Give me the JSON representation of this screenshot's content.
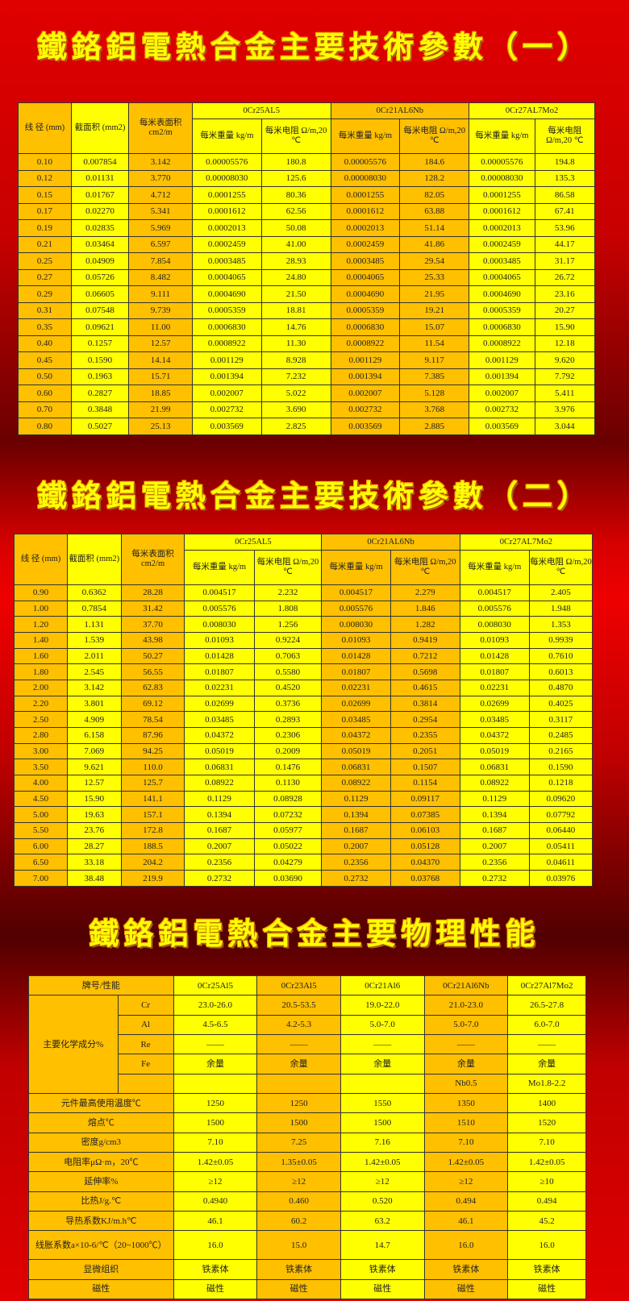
{
  "titles": [
    "鐵鉻鋁電熱合金主要技術參數（一）",
    "鐵鉻鋁電熱合金主要技術參數（二）",
    "鐵鉻鋁電熱合金主要物理性能"
  ],
  "param_header": {
    "diameter": "线 径 (mm)",
    "area": "截面积 (mm2)",
    "surface": "每米表面积 cm2/m",
    "alloys": [
      "0Cr25AL5",
      "0Cr21AL6Nb",
      "0Cr27AL7Mo2"
    ],
    "weight": "每米重量 kg/m",
    "resistance": "每米电阻 Ω/m,20 ℃"
  },
  "table1_rows": [
    [
      "0.10",
      "0.007854",
      "3.142",
      "0.00005576",
      "180.8",
      "0.00005576",
      "184.6",
      "0.00005576",
      "194.8"
    ],
    [
      "0.12",
      "0.01131",
      "3.770",
      "0.00008030",
      "125.6",
      "0.00008030",
      "128.2",
      "0.00008030",
      "135.3"
    ],
    [
      "0.15",
      "0.01767",
      "4.712",
      "0.0001255",
      "80.36",
      "0.0001255",
      "82.05",
      "0.0001255",
      "86.58"
    ],
    [
      "0.17",
      "0.02270",
      "5.341",
      "0.0001612",
      "62.56",
      "0.0001612",
      "63.88",
      "0.0001612",
      "67.41"
    ],
    [
      "0.19",
      "0.02835",
      "5.969",
      "0.0002013",
      "50.08",
      "0.0002013",
      "51.14",
      "0.0002013",
      "53.96"
    ],
    [
      "0.21",
      "0.03464",
      "6.597",
      "0.0002459",
      "41.00",
      "0.0002459",
      "41.86",
      "0.0002459",
      "44.17"
    ],
    [
      "0.25",
      "0.04909",
      "7.854",
      "0.0003485",
      "28.93",
      "0.0003485",
      "29.54",
      "0.0003485",
      "31.17"
    ],
    [
      "0.27",
      "0.05726",
      "8.482",
      "0.0004065",
      "24.80",
      "0.0004065",
      "25.33",
      "0.0004065",
      "26.72"
    ],
    [
      "0.29",
      "0.06605",
      "9.111",
      "0.0004690",
      "21.50",
      "0.0004690",
      "21.95",
      "0.0004690",
      "23.16"
    ],
    [
      "0.31",
      "0.07548",
      "9.739",
      "0.0005359",
      "18.81",
      "0.0005359",
      "19.21",
      "0.0005359",
      "20.27"
    ],
    [
      "0.35",
      "0.09621",
      "11.00",
      "0.0006830",
      "14.76",
      "0.0006830",
      "15.07",
      "0.0006830",
      "15.90"
    ],
    [
      "0.40",
      "0.1257",
      "12.57",
      "0.0008922",
      "11.30",
      "0.0008922",
      "11.54",
      "0.0008922",
      "12.18"
    ],
    [
      "0.45",
      "0.1590",
      "14.14",
      "0.001129",
      "8.928",
      "0.001129",
      "9.117",
      "0.001129",
      "9.620"
    ],
    [
      "0.50",
      "0.1963",
      "15.71",
      "0.001394",
      "7.232",
      "0.001394",
      "7.385",
      "0.001394",
      "7.792"
    ],
    [
      "0.60",
      "0.2827",
      "18.85",
      "0.002007",
      "5.022",
      "0.002007",
      "5.128",
      "0.002007",
      "5.411"
    ],
    [
      "0.70",
      "0.3848",
      "21.99",
      "0.002732",
      "3.690",
      "0.002732",
      "3.768",
      "0.002732",
      "3.976"
    ],
    [
      "0.80",
      "0.5027",
      "25.13",
      "0.003569",
      "2.825",
      "0.003569",
      "2.885",
      "0.003569",
      "3.044"
    ]
  ],
  "table2_rows": [
    [
      "0.90",
      "0.6362",
      "28.28",
      "0.004517",
      "2.232",
      "0.004517",
      "2.279",
      "0.004517",
      "2.405"
    ],
    [
      "1.00",
      "0.7854",
      "31.42",
      "0.005576",
      "1.808",
      "0.005576",
      "1.846",
      "0.005576",
      "1.948"
    ],
    [
      "1.20",
      "1.131",
      "37.70",
      "0.008030",
      "1.256",
      "0.008030",
      "1.282",
      "0.008030",
      "1.353"
    ],
    [
      "1.40",
      "1.539",
      "43.98",
      "0.01093",
      "0.9224",
      "0.01093",
      "0.9419",
      "0.01093",
      "0.9939"
    ],
    [
      "1.60",
      "2.011",
      "50.27",
      "0.01428",
      "0.7063",
      "0.01428",
      "0.7212",
      "0.01428",
      "0.7610"
    ],
    [
      "1.80",
      "2.545",
      "56.55",
      "0.01807",
      "0.5580",
      "0.01807",
      "0.5698",
      "0.01807",
      "0.6013"
    ],
    [
      "2.00",
      "3.142",
      "62.83",
      "0.02231",
      "0.4520",
      "0.02231",
      "0.4615",
      "0.02231",
      "0.4870"
    ],
    [
      "2.20",
      "3.801",
      "69.12",
      "0.02699",
      "0.3736",
      "0.02699",
      "0.3814",
      "0.02699",
      "0.4025"
    ],
    [
      "2.50",
      "4.909",
      "78.54",
      "0.03485",
      "0.2893",
      "0.03485",
      "0.2954",
      "0.03485",
      "0.3117"
    ],
    [
      "2.80",
      "6.158",
      "87.96",
      "0.04372",
      "0.2306",
      "0.04372",
      "0.2355",
      "0.04372",
      "0.2485"
    ],
    [
      "3.00",
      "7.069",
      "94.25",
      "0.05019",
      "0.2009",
      "0.05019",
      "0.2051",
      "0.05019",
      "0.2165"
    ],
    [
      "3.50",
      "9.621",
      "110.0",
      "0.06831",
      "0.1476",
      "0.06831",
      "0.1507",
      "0.06831",
      "0.1590"
    ],
    [
      "4.00",
      "12.57",
      "125.7",
      "0.08922",
      "0.1130",
      "0.08922",
      "0.1154",
      "0.08922",
      "0.1218"
    ],
    [
      "4.50",
      "15.90",
      "141.1",
      "0.1129",
      "0.08928",
      "0.1129",
      "0.09117",
      "0.1129",
      "0.09620"
    ],
    [
      "5.00",
      "19.63",
      "157.1",
      "0.1394",
      "0.07232",
      "0.1394",
      "0.07385",
      "0.1394",
      "0.07792"
    ],
    [
      "5.50",
      "23.76",
      "172.8",
      "0.1687",
      "0.05977",
      "0.1687",
      "0.06103",
      "0.1687",
      "0.06440"
    ],
    [
      "6.00",
      "28.27",
      "188.5",
      "0.2007",
      "0.05022",
      "0.2007",
      "0.05128",
      "0.2007",
      "0.05411"
    ],
    [
      "6.50",
      "33.18",
      "204.2",
      "0.2356",
      "0.04279",
      "0.2356",
      "0.04370",
      "0.2356",
      "0.04611"
    ],
    [
      "7.00",
      "38.48",
      "219.9",
      "0.2732",
      "0.03690",
      "0.2732",
      "0.03768",
      "0.2732",
      "0.03976"
    ]
  ],
  "physical": {
    "header_label": "牌号/性能",
    "alloys": [
      "0Cr25Al5",
      "0Cr23Al5",
      "0Cr21Al6",
      "0Cr21Al6Nb",
      "0Cr27Al7Mo2"
    ],
    "chem_label": "主要化学成分%",
    "chem_rows": [
      {
        "el": "Cr",
        "v": [
          "23.0-26.0",
          "20.5-53.5",
          "19.0-22.0",
          "21.0-23.0",
          "26.5-27.8"
        ]
      },
      {
        "el": "Al",
        "v": [
          "4.5-6.5",
          "4.2-5.3",
          "5.0-7.0",
          "5.0-7.0",
          "6.0-7.0"
        ]
      },
      {
        "el": "Re",
        "v": [
          "——",
          "——",
          "——",
          "——",
          "——"
        ]
      },
      {
        "el": "Fe",
        "v": [
          "余量",
          "余量",
          "余量",
          "余量",
          "余量"
        ]
      },
      {
        "el": "",
        "v": [
          "",
          "",
          "",
          "Nb0.5",
          "Mo1.8-2.2"
        ]
      }
    ],
    "rows": [
      {
        "label": "元件最高使用温度℃",
        "v": [
          "1250",
          "1250",
          "1550",
          "1350",
          "1400"
        ]
      },
      {
        "label": "熔点℃",
        "v": [
          "1500",
          "1500",
          "1500",
          "1510",
          "1520"
        ]
      },
      {
        "label": "密度g/cm3",
        "v": [
          "7.10",
          "7.25",
          "7.16",
          "7.10",
          "7.10"
        ]
      },
      {
        "label": "电阻率μΩ·m，20℃",
        "v": [
          "1.42±0.05",
          "1.35±0.05",
          "1.42±0.05",
          "1.42±0.05",
          "1.42±0.05"
        ]
      },
      {
        "label": "延伸率%",
        "v": [
          "≥12",
          "≥12",
          "≥12",
          "≥12",
          "≥10"
        ]
      },
      {
        "label": "比热J/g.℃",
        "v": [
          "0.4940",
          "0.460",
          "0.520",
          "0.494",
          "0.494"
        ]
      },
      {
        "label": "导热系数KJ/m.h℃",
        "v": [
          "46.1",
          "60.2",
          "63.2",
          "46.1",
          "45.2"
        ]
      },
      {
        "label": "线胀系数a×10-6/℃（20~1000℃）",
        "v": [
          "16.0",
          "15.0",
          "14.7",
          "16.0",
          "16.0"
        ]
      },
      {
        "label": "显微组织",
        "v": [
          "铁素体",
          "铁素体",
          "铁素体",
          "铁素体",
          "铁素体"
        ]
      },
      {
        "label": "磁性",
        "v": [
          "磁性",
          "磁性",
          "磁性",
          "磁性",
          "磁性"
        ]
      }
    ]
  },
  "colors": {
    "orange": "#ffc000",
    "yellow": "#ffff00",
    "background": "#e00000"
  }
}
